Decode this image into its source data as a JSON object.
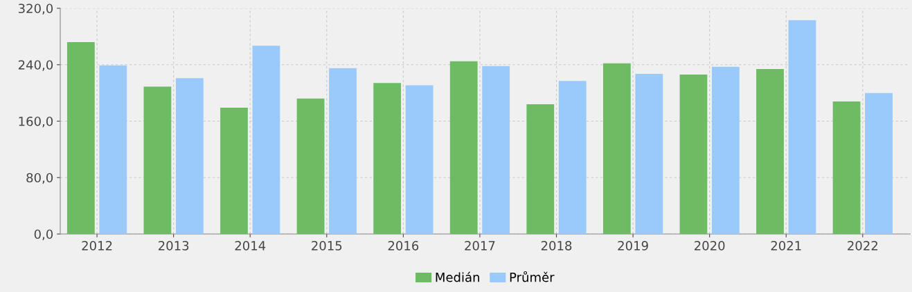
{
  "chart_data": {
    "type": "bar",
    "categories": [
      "2012",
      "2013",
      "2014",
      "2015",
      "2016",
      "2017",
      "2018",
      "2019",
      "2020",
      "2021",
      "2022"
    ],
    "series": [
      {
        "name": "Medián",
        "color": "#6dbb63",
        "values": [
          272,
          209,
          179,
          192,
          214,
          245,
          184,
          242,
          226,
          234,
          188
        ]
      },
      {
        "name": "Průměr",
        "color": "#99cafb",
        "values": [
          239,
          221,
          267,
          235,
          211,
          238,
          217,
          227,
          237,
          303,
          200
        ]
      }
    ],
    "ylim": [
      0,
      320
    ],
    "yticks": [
      {
        "value": 0,
        "label": "0,0"
      },
      {
        "value": 80,
        "label": "80,0"
      },
      {
        "value": 160,
        "label": "160,0"
      },
      {
        "value": 240,
        "label": "240,0"
      },
      {
        "value": 320,
        "label": "320,0"
      }
    ],
    "grid": true,
    "legend": "bottom"
  }
}
